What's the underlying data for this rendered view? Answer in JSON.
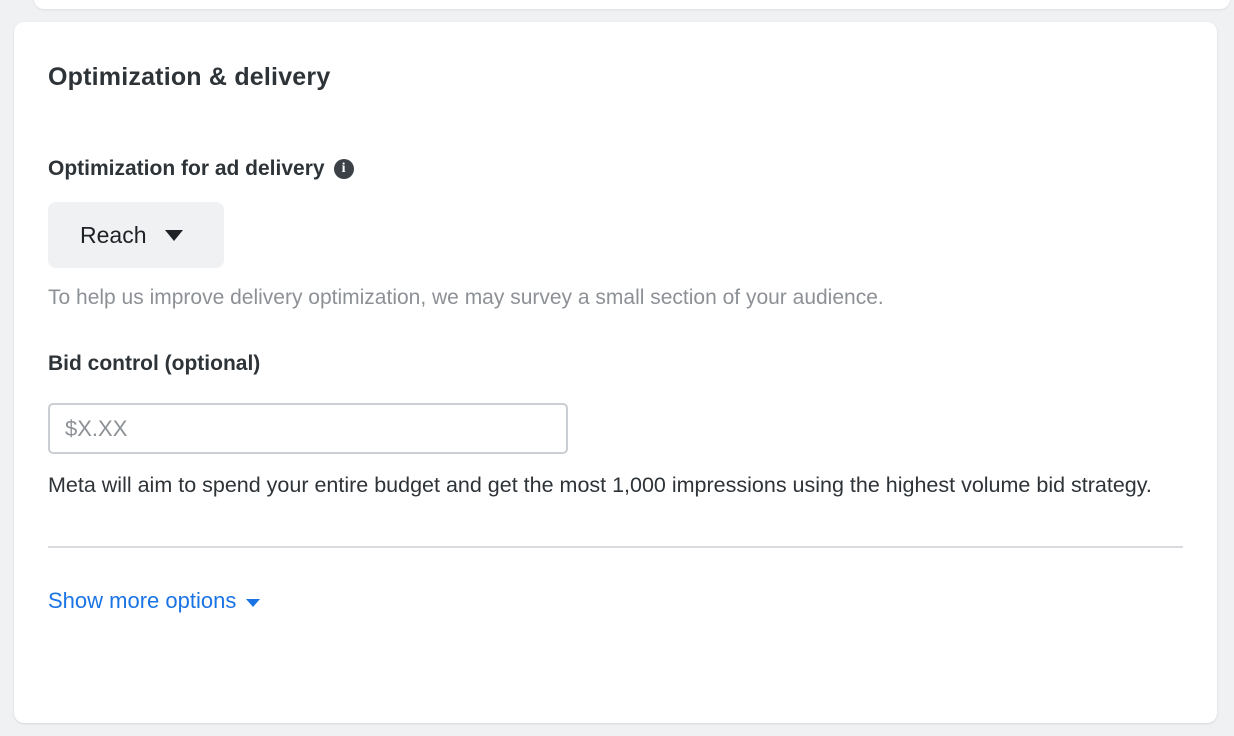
{
  "card": {
    "title": "Optimization & delivery",
    "optimization_section": {
      "label": "Optimization for ad delivery",
      "dropdown": {
        "value": "Reach"
      },
      "helper_text": "To help us improve delivery optimization, we may survey a small section of your audience."
    },
    "bid_section": {
      "label": "Bid control (optional)",
      "input": {
        "value": "",
        "placeholder": "$X.XX"
      },
      "description": "Meta will aim to spend your entire budget and get the most 1,000 impressions using the highest volume bid strategy."
    },
    "footer": {
      "show_more_label": "Show more options"
    }
  },
  "icons": {
    "info_glyph": "i"
  },
  "colors": {
    "accent_blue": "#1b74e4",
    "text_dark": "#2e3338",
    "text_muted": "#8d9196",
    "divider": "#d8dade",
    "page_background": "#f0f1f3",
    "dropdown_background": "#f0f1f2"
  }
}
